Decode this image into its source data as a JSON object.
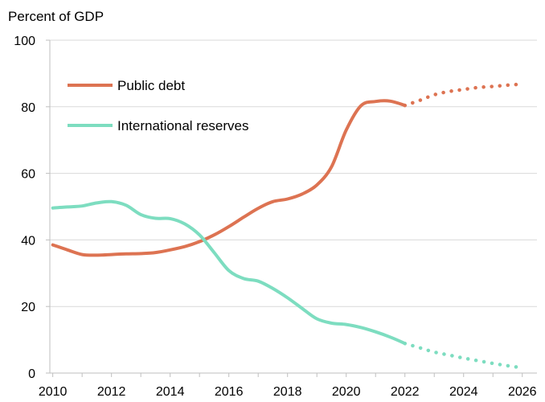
{
  "chart_data": {
    "type": "line",
    "ylabel": "Percent of GDP",
    "ylim": [
      0,
      100
    ],
    "yticks": [
      0,
      20,
      40,
      60,
      80,
      100
    ],
    "xlim": [
      2009.9,
      2026.5
    ],
    "xticks": [
      2010,
      2012,
      2014,
      2016,
      2018,
      2020,
      2022,
      2024,
      2026
    ],
    "grid": "horizontal",
    "legend_position": "top-left",
    "series": [
      {
        "name": "Public debt",
        "color": "#DD7352",
        "actual": [
          [
            2010.0,
            38.5
          ],
          [
            2010.5,
            37.0
          ],
          [
            2011.0,
            35.6
          ],
          [
            2011.5,
            35.4
          ],
          [
            2012.0,
            35.6
          ],
          [
            2012.5,
            35.8
          ],
          [
            2013.0,
            35.9
          ],
          [
            2013.5,
            36.2
          ],
          [
            2014.0,
            37.0
          ],
          [
            2014.5,
            38.0
          ],
          [
            2015.0,
            39.5
          ],
          [
            2015.5,
            41.5
          ],
          [
            2016.0,
            44.0
          ],
          [
            2016.5,
            46.8
          ],
          [
            2017.0,
            49.5
          ],
          [
            2017.5,
            51.5
          ],
          [
            2018.0,
            52.3
          ],
          [
            2018.5,
            53.8
          ],
          [
            2019.0,
            56.5
          ],
          [
            2019.5,
            62.0
          ],
          [
            2020.0,
            73.0
          ],
          [
            2020.5,
            80.3
          ],
          [
            2021.0,
            81.6
          ],
          [
            2021.5,
            81.7
          ],
          [
            2022.0,
            80.4
          ]
        ],
        "projected": [
          [
            2022.0,
            80.4
          ],
          [
            2022.5,
            81.9
          ],
          [
            2023.0,
            83.6
          ],
          [
            2023.5,
            84.6
          ],
          [
            2024.0,
            85.2
          ],
          [
            2024.5,
            85.8
          ],
          [
            2025.0,
            86.1
          ],
          [
            2025.5,
            86.5
          ],
          [
            2026.0,
            86.8
          ]
        ]
      },
      {
        "name": "International reserves",
        "color": "#7DDDC0",
        "actual": [
          [
            2010.0,
            49.6
          ],
          [
            2010.5,
            49.9
          ],
          [
            2011.0,
            50.2
          ],
          [
            2011.5,
            51.1
          ],
          [
            2012.0,
            51.5
          ],
          [
            2012.5,
            50.4
          ],
          [
            2013.0,
            47.6
          ],
          [
            2013.5,
            46.5
          ],
          [
            2014.0,
            46.4
          ],
          [
            2014.5,
            44.8
          ],
          [
            2015.0,
            41.5
          ],
          [
            2015.5,
            36.2
          ],
          [
            2016.0,
            30.8
          ],
          [
            2016.5,
            28.4
          ],
          [
            2017.0,
            27.6
          ],
          [
            2017.5,
            25.4
          ],
          [
            2018.0,
            22.6
          ],
          [
            2018.5,
            19.4
          ],
          [
            2019.0,
            16.3
          ],
          [
            2019.5,
            15.0
          ],
          [
            2020.0,
            14.6
          ],
          [
            2020.5,
            13.7
          ],
          [
            2021.0,
            12.4
          ],
          [
            2021.5,
            10.8
          ],
          [
            2022.0,
            8.9
          ]
        ],
        "projected": [
          [
            2022.0,
            8.9
          ],
          [
            2022.5,
            7.6
          ],
          [
            2023.0,
            6.3
          ],
          [
            2023.5,
            5.4
          ],
          [
            2024.0,
            4.5
          ],
          [
            2024.5,
            3.7
          ],
          [
            2025.0,
            2.9
          ],
          [
            2025.5,
            2.2
          ],
          [
            2026.0,
            1.6
          ]
        ]
      }
    ]
  }
}
